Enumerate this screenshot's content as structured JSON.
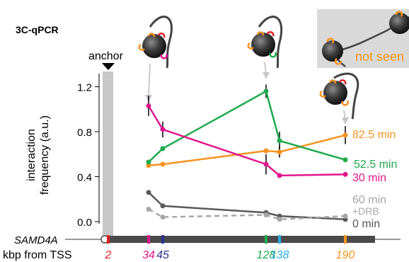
{
  "panel_label": "3C-qPCR",
  "anchor_label": "anchor",
  "gene_label": "SAMD4A",
  "x_axis_label": "kbp from TSS",
  "y_axis_label_line1": "interaction",
  "y_axis_label_line2": "frequency (a.u.)",
  "inset_label": "not seen",
  "colors": {
    "30 min": "#e0168e",
    "52.5 min": "#1faa4e",
    "82.5 min": "#f7931e",
    "60 min +DRB": "#a6a6a6",
    "0 min": "#595959",
    "tick_2": "#e01e26",
    "tick_34": "#e0168e",
    "tick_45": "#2e3192",
    "tick_128": "#1faa4e",
    "tick_138": "#29abe2",
    "tick_190": "#f7931e"
  },
  "chart_data": {
    "type": "line",
    "x": [
      34,
      45,
      128,
      138,
      190
    ],
    "x_tick_labels": [
      "2",
      "34",
      "45",
      "128",
      "138",
      "190"
    ],
    "ylim": [
      0,
      1.3
    ],
    "y_ticks": [
      "0.0",
      "0.4",
      "0.8",
      "1.2"
    ],
    "series": [
      {
        "name": "30 min",
        "values": [
          1.03,
          0.82,
          0.51,
          0.41,
          0.42
        ]
      },
      {
        "name": "52.5 min",
        "values": [
          0.53,
          0.65,
          1.16,
          0.72,
          0.55
        ]
      },
      {
        "name": "82.5 min",
        "values": [
          0.5,
          0.51,
          0.63,
          0.62,
          0.77
        ]
      },
      {
        "name": "0 min",
        "values": [
          0.26,
          0.14,
          0.08,
          0.05,
          0.02
        ]
      },
      {
        "name": "60 min +DRB",
        "values": [
          0.11,
          0.04,
          0.06,
          0.02,
          0.05
        ]
      }
    ]
  }
}
